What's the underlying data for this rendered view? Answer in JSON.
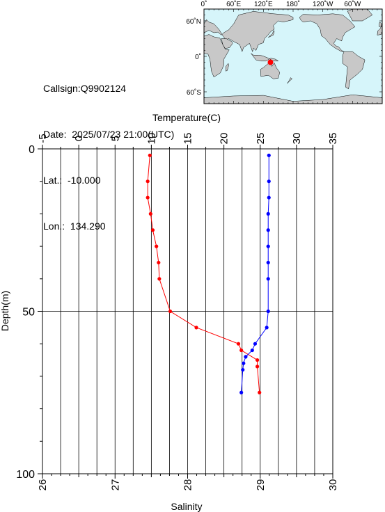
{
  "station": {
    "callsign": "Callsign:Q9902124",
    "date": "Date:  2025/07/23 21:00(UTC)",
    "lat": "Lat.:  -10.000",
    "lon": "Lon.:  134.290"
  },
  "map": {
    "top_labels": [
      "0˚",
      "60˚E",
      "120˚E",
      "180˚",
      "120˚W",
      "60˚W"
    ],
    "left_labels": [
      "60˚N",
      "0˚",
      "60˚S"
    ],
    "ocean_color": "#d6f5fa",
    "land_color": "#c8c8c8",
    "marker_color": "#ff0000",
    "marker": {
      "lat": -10.0,
      "lon": 134.29
    }
  },
  "chart_data": {
    "type": "line",
    "title": "",
    "xlabel_top": "Temperature(C)",
    "xlabel_bottom": "Salinity",
    "ylabel": "Depth(m)",
    "temperature_axis": {
      "min": -5,
      "max": 35,
      "ticks": [
        -5,
        0,
        5,
        10,
        15,
        20,
        25,
        30,
        35
      ]
    },
    "salinity_axis": {
      "min": 26,
      "max": 30,
      "ticks": [
        26,
        27,
        28,
        29,
        30
      ]
    },
    "depth_axis": {
      "min": 0,
      "max": 100,
      "ticks": [
        0,
        50,
        100
      ],
      "inverted": true
    },
    "grid": true,
    "series": [
      {
        "name": "Temperature",
        "axis": "temperature",
        "color": "#ff0000",
        "points": [
          [
            9.8,
            2
          ],
          [
            9.5,
            10
          ],
          [
            9.5,
            15
          ],
          [
            9.9,
            20
          ],
          [
            10.2,
            25
          ],
          [
            10.7,
            30
          ],
          [
            11.0,
            35
          ],
          [
            11.1,
            40
          ],
          [
            12.6,
            50
          ],
          [
            16.2,
            55
          ],
          [
            22.0,
            60
          ],
          [
            22.4,
            62
          ],
          [
            24.6,
            65
          ],
          [
            24.6,
            67
          ],
          [
            24.9,
            75
          ]
        ]
      },
      {
        "name": "Salinity",
        "axis": "salinity",
        "color": "#0000ff",
        "points": [
          [
            29.12,
            2
          ],
          [
            29.12,
            10
          ],
          [
            29.12,
            15
          ],
          [
            29.11,
            20
          ],
          [
            29.11,
            25
          ],
          [
            29.11,
            30
          ],
          [
            29.11,
            35
          ],
          [
            29.11,
            40
          ],
          [
            29.11,
            50
          ],
          [
            29.09,
            55
          ],
          [
            28.93,
            60
          ],
          [
            28.89,
            62
          ],
          [
            28.8,
            64
          ],
          [
            28.77,
            66
          ],
          [
            28.76,
            68
          ],
          [
            28.74,
            75
          ]
        ]
      }
    ]
  }
}
